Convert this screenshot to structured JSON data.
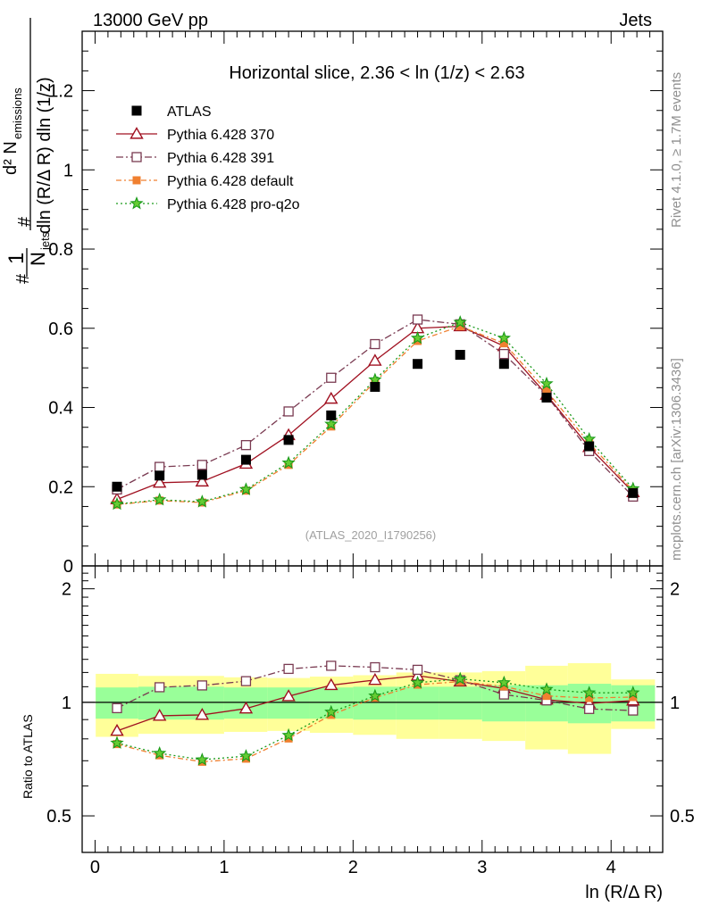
{
  "header": {
    "left": "13000 GeV pp",
    "right": "Jets"
  },
  "side_labels": {
    "rivet": "Rivet 4.1.0, ≥ 1.7M events",
    "mcplots": "mcplots.cern.ch [arXiv:1306.3436]"
  },
  "chart_data": {
    "type": "scatter",
    "title": "Horizontal slice, 2.36 < ln (1/z) < 2.63",
    "watermark": "(ATLAS_2020_I1790256)",
    "xlabel": "ln (R/Δ R)",
    "ylabel_top": "#1/N_jets #d² N_emissions / dln (R/Δ R) dln (1/z)",
    "ylabel_ratio": "Ratio to ATLAS",
    "xlim": [
      -0.1,
      4.4
    ],
    "ylim_main": [
      0,
      1.35
    ],
    "ylim_ratio": [
      0.4,
      2.3
    ],
    "x_ticks": [
      "0",
      "1",
      "2",
      "3",
      "4"
    ],
    "y_ticks_main": [
      "0",
      "0.2",
      "0.4",
      "0.6",
      "0.8",
      "1",
      "1.2"
    ],
    "y_ticks_ratio": [
      "0.5",
      "1",
      "2"
    ],
    "x": [
      0.17,
      0.5,
      0.83,
      1.17,
      1.5,
      1.83,
      2.17,
      2.5,
      2.83,
      3.17,
      3.5,
      3.83,
      4.17
    ],
    "atlas": {
      "name": "ATLAS",
      "values": [
        0.2,
        0.228,
        0.23,
        0.268,
        0.318,
        0.38,
        0.452,
        0.51,
        0.533,
        0.51,
        0.425,
        0.302,
        0.184
      ],
      "band_inner": [
        0.095,
        0.1,
        0.1,
        0.095,
        0.095,
        0.095,
        0.1,
        0.1,
        0.1,
        0.11,
        0.11,
        0.12,
        0.11
      ],
      "band_outer": [
        0.19,
        0.175,
        0.175,
        0.165,
        0.16,
        0.17,
        0.18,
        0.2,
        0.2,
        0.21,
        0.25,
        0.27,
        0.15
      ]
    },
    "series": [
      {
        "name": "Pythia 6.428 370",
        "color": "#a01020",
        "dash": "",
        "marker": "triangle",
        "values": [
          0.168,
          0.21,
          0.213,
          0.258,
          0.33,
          0.422,
          0.518,
          0.6,
          0.605,
          0.555,
          0.432,
          0.3,
          0.186
        ]
      },
      {
        "name": "Pythia 6.428 391",
        "color": "#7a3b52",
        "dash": "8,3,2,3",
        "marker": "square",
        "values": [
          0.193,
          0.25,
          0.255,
          0.305,
          0.39,
          0.475,
          0.56,
          0.622,
          0.61,
          0.535,
          0.43,
          0.29,
          0.175
        ]
      },
      {
        "name": "Pythia 6.428 default",
        "color": "#f08030",
        "dash": "6,3,2,3",
        "marker": "filledsquare",
        "values": [
          0.155,
          0.165,
          0.16,
          0.19,
          0.255,
          0.352,
          0.465,
          0.568,
          0.605,
          0.562,
          0.442,
          0.31,
          0.19
        ]
      },
      {
        "name": "Pythia 6.428 pro-q2o",
        "color": "#1a9a1a",
        "dash": "2,3",
        "marker": "star",
        "values": [
          0.156,
          0.167,
          0.162,
          0.193,
          0.26,
          0.358,
          0.47,
          0.575,
          0.615,
          0.575,
          0.46,
          0.32,
          0.195
        ]
      }
    ]
  }
}
